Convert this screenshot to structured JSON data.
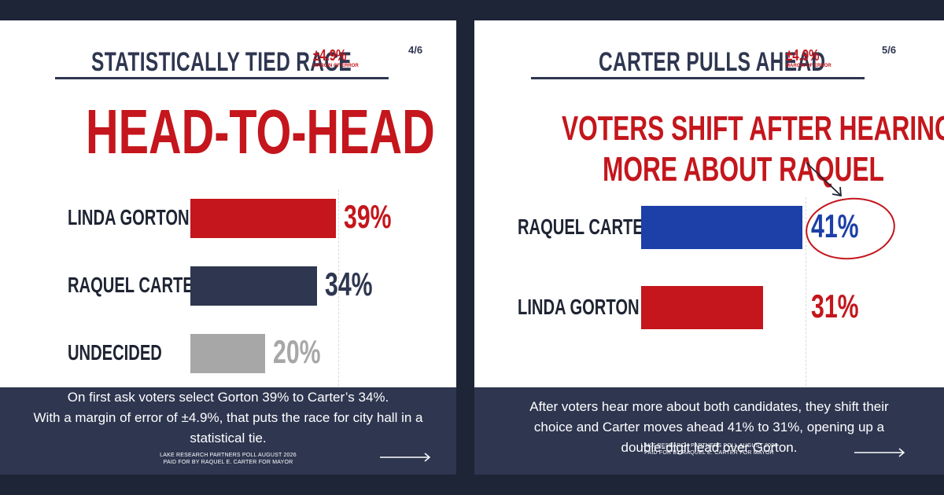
{
  "colors": {
    "background": "#1e2537",
    "navy": "#2e3650",
    "red": "#c4161c",
    "blue": "#1c3fa8",
    "gray": "#a7a7a7"
  },
  "left_panel": {
    "title": "STATISTICALLY TIED RACE",
    "moe_value": "±4.9%",
    "moe_label": "MARGIN OF ERROR",
    "page": "4/6",
    "headline": "HEAD-TO-HEAD",
    "footer_lines": [
      "On first ask voters select Gorton 39% to Carter’s 34%.",
      "With a margin of error of ±4.9%, that puts the race for city hall in a",
      "statistical tie."
    ],
    "source_lines": [
      "LAKE RESEARCH PARTNERS POLL AUGUST 2026",
      "PAID FOR BY RAQUEL E. CARTER FOR MAYOR"
    ],
    "next_icon": "arrow-right-icon"
  },
  "right_panel": {
    "title": "CARTER PULLS AHEAD",
    "moe_value": "±4.9%",
    "moe_label": "MARGIN OF ERROR",
    "page": "5/6",
    "headline_lines": [
      "VOTERS SHIFT AFTER HEARING",
      "MORE ABOUT RAQUEL"
    ],
    "footer_lines": [
      "After voters hear more about both candidates, they shift their",
      "choice and Carter moves ahead 41% to 31%, opening up a",
      "double-digit lead over Gorton."
    ],
    "source_lines": [
      "LAKE RESEARCH PARTNERS POLL AUGUST 2026",
      "PAID FOR BY RAQUEL E. CARTER FOR MAYOR"
    ],
    "next_icon": "arrow-right-icon",
    "annotation_icon": "pointer-arrow-icon"
  },
  "chart_data": [
    {
      "type": "bar",
      "orientation": "horizontal",
      "categories": [
        "LINDA GORTON",
        "RAQUEL CARTER",
        "UNDECIDED"
      ],
      "values": [
        39,
        34,
        20
      ],
      "value_labels": [
        "39%",
        "34%",
        "20%"
      ],
      "colors": [
        "#c4161c",
        "#2e3650",
        "#a7a7a7"
      ],
      "title": "HEAD-TO-HEAD",
      "xlim": [
        0,
        42
      ]
    },
    {
      "type": "bar",
      "orientation": "horizontal",
      "categories": [
        "RAQUEL CARTER",
        "LINDA GORTON"
      ],
      "values": [
        41,
        31
      ],
      "value_labels": [
        "41%",
        "31%"
      ],
      "colors": [
        "#1c3fa8",
        "#c4161c"
      ],
      "title": "VOTERS SHIFT AFTER HEARING MORE ABOUT RAQUEL",
      "highlight": "RAQUEL CARTER",
      "xlim": [
        0,
        41
      ]
    }
  ]
}
